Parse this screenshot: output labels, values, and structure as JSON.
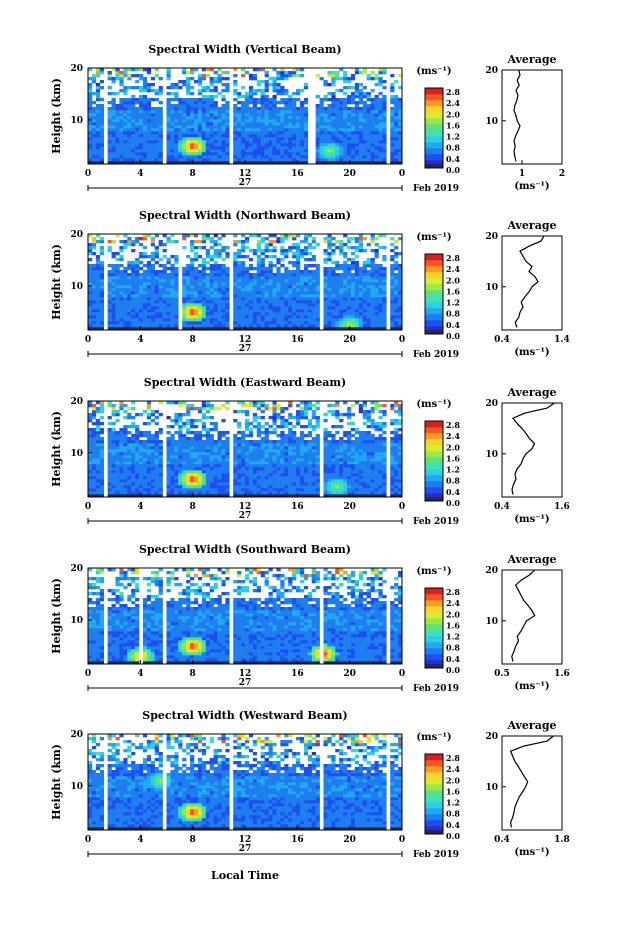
{
  "figure": {
    "ylabel": "Height (km)",
    "xlabel": "Local Time",
    "date_label": "Feb 2019",
    "day_label": "27",
    "avg_title": "Average",
    "colorbar_unit": "(ms⁻¹)",
    "avg_xlabel": "(ms⁻¹)"
  },
  "colors": {
    "colormap": [
      "#2b2bd0",
      "#1e50f0",
      "#1e7ef0",
      "#22a8f0",
      "#2bd0e6",
      "#40e0b8",
      "#5ee080",
      "#9ae84a",
      "#d6ee2e",
      "#f6d42a",
      "#f89a26",
      "#f05a22",
      "#d82020"
    ],
    "gap": "#ffffff",
    "clutter": "#1f2a55"
  },
  "chart_data": [
    {
      "type": "heatmap",
      "title": "Spectral Width (Vertical Beam)",
      "beam": "Vertical",
      "xlabel": "Local Time",
      "ylabel": "Height (km)",
      "xlim": [
        0,
        24
      ],
      "ylim": [
        1.5,
        20
      ],
      "x_ticks": [
        "0",
        "4",
        "8",
        "12",
        "16",
        "20",
        "0"
      ],
      "y_ticks": [
        "10",
        "20"
      ],
      "colorbar": {
        "unit": "(ms⁻¹)",
        "range": [
          0.0,
          2.8
        ],
        "ticks": [
          "2.8",
          "2.4",
          "2.0",
          "1.6",
          "1.2",
          "0.8",
          "0.4",
          "0.0"
        ]
      },
      "data_gaps_hours": [
        [
          1.2,
          1.5
        ],
        [
          5.8,
          6.1
        ],
        [
          10.8,
          11.1
        ],
        [
          16.9,
          17.3
        ],
        [
          22.9,
          23.2
        ]
      ],
      "high_width_spots": [
        {
          "time": 8.0,
          "height": 5.0,
          "value": 2.8
        },
        {
          "time": 18.5,
          "height": 4.0,
          "value": 1.6
        }
      ],
      "average_profile": {
        "title": "Average",
        "xlabel": "(ms⁻¹)",
        "xlim": [
          0.5,
          2.0
        ],
        "x_ticks": [
          "1",
          "2"
        ],
        "y_ticks": [
          "10",
          "20"
        ],
        "height_km": [
          2,
          3,
          4,
          5,
          6,
          7,
          8,
          9,
          10,
          11,
          12,
          13,
          14,
          15,
          16,
          17,
          18,
          19,
          20
        ],
        "width_ms": [
          0.85,
          0.82,
          0.8,
          0.83,
          0.8,
          0.84,
          0.9,
          0.95,
          0.88,
          0.85,
          0.8,
          0.82,
          0.87,
          0.9,
          0.85,
          0.93,
          0.88,
          0.95,
          0.92
        ]
      }
    },
    {
      "type": "heatmap",
      "title": "Spectral Width (Northward Beam)",
      "beam": "Northward",
      "xlabel": "Local Time",
      "ylabel": "Height (km)",
      "xlim": [
        0,
        24
      ],
      "ylim": [
        1.5,
        20
      ],
      "x_ticks": [
        "0",
        "4",
        "8",
        "12",
        "16",
        "20",
        "0"
      ],
      "y_ticks": [
        "10",
        "20"
      ],
      "colorbar": {
        "unit": "(ms⁻¹)",
        "range": [
          0.0,
          2.8
        ],
        "ticks": [
          "2.8",
          "2.4",
          "2.0",
          "1.6",
          "1.2",
          "0.8",
          "0.4",
          "0.0"
        ]
      },
      "data_gaps_hours": [
        [
          1.1,
          1.4
        ],
        [
          6.9,
          7.2
        ],
        [
          10.9,
          11.2
        ],
        [
          17.6,
          17.9
        ],
        [
          22.9,
          23.2
        ]
      ],
      "high_width_spots": [
        {
          "time": 8.0,
          "height": 5.0,
          "value": 2.8
        },
        {
          "time": 20.0,
          "height": 2.5,
          "value": 1.8
        }
      ],
      "average_profile": {
        "title": "Average",
        "xlabel": "(ms⁻¹)",
        "xlim": [
          0.4,
          1.4
        ],
        "x_ticks": [
          "0.4",
          "1.4"
        ],
        "y_ticks": [
          "10",
          "20"
        ],
        "height_km": [
          2,
          3,
          4,
          5,
          6,
          7,
          8,
          9,
          10,
          11,
          12,
          13,
          14,
          15,
          16,
          17,
          18,
          19,
          20
        ],
        "width_ms": [
          0.65,
          0.62,
          0.68,
          0.7,
          0.75,
          0.72,
          0.78,
          0.85,
          0.9,
          1.0,
          0.95,
          0.85,
          0.9,
          0.8,
          0.75,
          0.7,
          0.85,
          1.05,
          1.1
        ]
      }
    },
    {
      "type": "heatmap",
      "title": "Spectral Width (Eastward Beam)",
      "beam": "Eastward",
      "xlabel": "Local Time",
      "ylabel": "Height (km)",
      "xlim": [
        0,
        24
      ],
      "ylim": [
        1.5,
        20
      ],
      "x_ticks": [
        "0",
        "4",
        "8",
        "12",
        "16",
        "20",
        "0"
      ],
      "y_ticks": [
        "10",
        "20"
      ],
      "colorbar": {
        "unit": "(ms⁻¹)",
        "range": [
          0.0,
          2.8
        ],
        "ticks": [
          "2.8",
          "2.4",
          "2.0",
          "1.6",
          "1.2",
          "0.8",
          "0.4",
          "0.0"
        ]
      },
      "data_gaps_hours": [
        [
          1.1,
          1.4
        ],
        [
          5.8,
          6.1
        ],
        [
          10.7,
          11.0
        ],
        [
          17.6,
          17.9
        ],
        [
          22.9,
          23.2
        ]
      ],
      "high_width_spots": [
        {
          "time": 8.0,
          "height": 5.0,
          "value": 2.8
        },
        {
          "time": 19.0,
          "height": 3.5,
          "value": 1.6
        }
      ],
      "average_profile": {
        "title": "Average",
        "xlabel": "(ms⁻¹)",
        "xlim": [
          0.4,
          1.6
        ],
        "x_ticks": [
          "0.4",
          "1.6"
        ],
        "y_ticks": [
          "10",
          "20"
        ],
        "height_km": [
          2,
          3,
          4,
          5,
          6,
          7,
          8,
          9,
          10,
          11,
          12,
          13,
          14,
          15,
          16,
          17,
          18,
          19,
          20
        ],
        "width_ms": [
          0.62,
          0.6,
          0.63,
          0.68,
          0.66,
          0.7,
          0.78,
          0.82,
          0.88,
          1.0,
          1.05,
          0.95,
          0.88,
          0.8,
          0.7,
          0.62,
          0.85,
          1.3,
          1.45
        ]
      }
    },
    {
      "type": "heatmap",
      "title": "Spectral Width (Southward Beam)",
      "beam": "Southward",
      "xlabel": "Local Time",
      "ylabel": "Height (km)",
      "xlim": [
        0,
        24
      ],
      "ylim": [
        1.5,
        20
      ],
      "x_ticks": [
        "0",
        "4",
        "8",
        "12",
        "16",
        "20",
        "0"
      ],
      "y_ticks": [
        "10",
        "20"
      ],
      "colorbar": {
        "unit": "(ms⁻¹)",
        "range": [
          0.0,
          2.8
        ],
        "ticks": [
          "2.8",
          "2.4",
          "2.0",
          "1.6",
          "1.2",
          "0.8",
          "0.4",
          "0.0"
        ]
      },
      "data_gaps_hours": [
        [
          1.1,
          1.4
        ],
        [
          3.8,
          4.1
        ],
        [
          5.8,
          6.1
        ],
        [
          10.8,
          11.1
        ],
        [
          17.6,
          17.9
        ],
        [
          22.9,
          23.2
        ]
      ],
      "high_width_spots": [
        {
          "time": 8.0,
          "height": 5.0,
          "value": 2.8
        },
        {
          "time": 18.0,
          "height": 3.5,
          "value": 2.8
        },
        {
          "time": 4.0,
          "height": 3.0,
          "value": 2.4
        }
      ],
      "average_profile": {
        "title": "Average",
        "xlabel": "(ms⁻¹)",
        "xlim": [
          0.5,
          1.6
        ],
        "x_ticks": [
          "0.5",
          "1.6"
        ],
        "y_ticks": [
          "10",
          "20"
        ],
        "height_km": [
          2,
          3,
          4,
          5,
          6,
          7,
          8,
          9,
          10,
          11,
          12,
          13,
          14,
          15,
          16,
          17,
          18,
          19,
          20
        ],
        "width_ms": [
          0.7,
          0.68,
          0.72,
          0.75,
          0.8,
          0.78,
          0.85,
          0.9,
          0.95,
          1.1,
          1.05,
          0.98,
          0.9,
          0.85,
          0.8,
          0.75,
          0.85,
          1.0,
          1.1
        ]
      }
    },
    {
      "type": "heatmap",
      "title": "Spectral Width (Westward Beam)",
      "beam": "Westward",
      "xlabel": "Local Time",
      "ylabel": "Height (km)",
      "xlim": [
        0,
        24
      ],
      "ylim": [
        1.5,
        20
      ],
      "x_ticks": [
        "0",
        "4",
        "8",
        "12",
        "16",
        "20",
        "0"
      ],
      "y_ticks": [
        "10",
        "20"
      ],
      "colorbar": {
        "unit": "(ms⁻¹)",
        "range": [
          0.0,
          2.8
        ],
        "ticks": [
          "2.8",
          "2.4",
          "2.0",
          "1.6",
          "1.2",
          "0.8",
          "0.4",
          "0.0"
        ]
      },
      "data_gaps_hours": [
        [
          1.1,
          1.4
        ],
        [
          5.8,
          6.1
        ],
        [
          10.8,
          11.1
        ],
        [
          17.6,
          17.9
        ],
        [
          22.9,
          23.2
        ]
      ],
      "high_width_spots": [
        {
          "time": 8.0,
          "height": 5.0,
          "value": 2.8
        },
        {
          "time": 5.5,
          "height": 11.0,
          "value": 1.6
        }
      ],
      "average_profile": {
        "title": "Average",
        "xlabel": "(ms⁻¹)",
        "xlim": [
          0.4,
          1.8
        ],
        "x_ticks": [
          "0.4",
          "1.8"
        ],
        "y_ticks": [
          "10",
          "20"
        ],
        "height_km": [
          2,
          3,
          4,
          5,
          6,
          7,
          8,
          9,
          10,
          11,
          12,
          13,
          14,
          15,
          16,
          17,
          18,
          19,
          20
        ],
        "width_ms": [
          0.62,
          0.6,
          0.65,
          0.68,
          0.7,
          0.75,
          0.8,
          0.88,
          0.95,
          1.0,
          0.92,
          0.85,
          0.78,
          0.7,
          0.65,
          0.6,
          0.9,
          1.45,
          1.6
        ]
      }
    }
  ]
}
